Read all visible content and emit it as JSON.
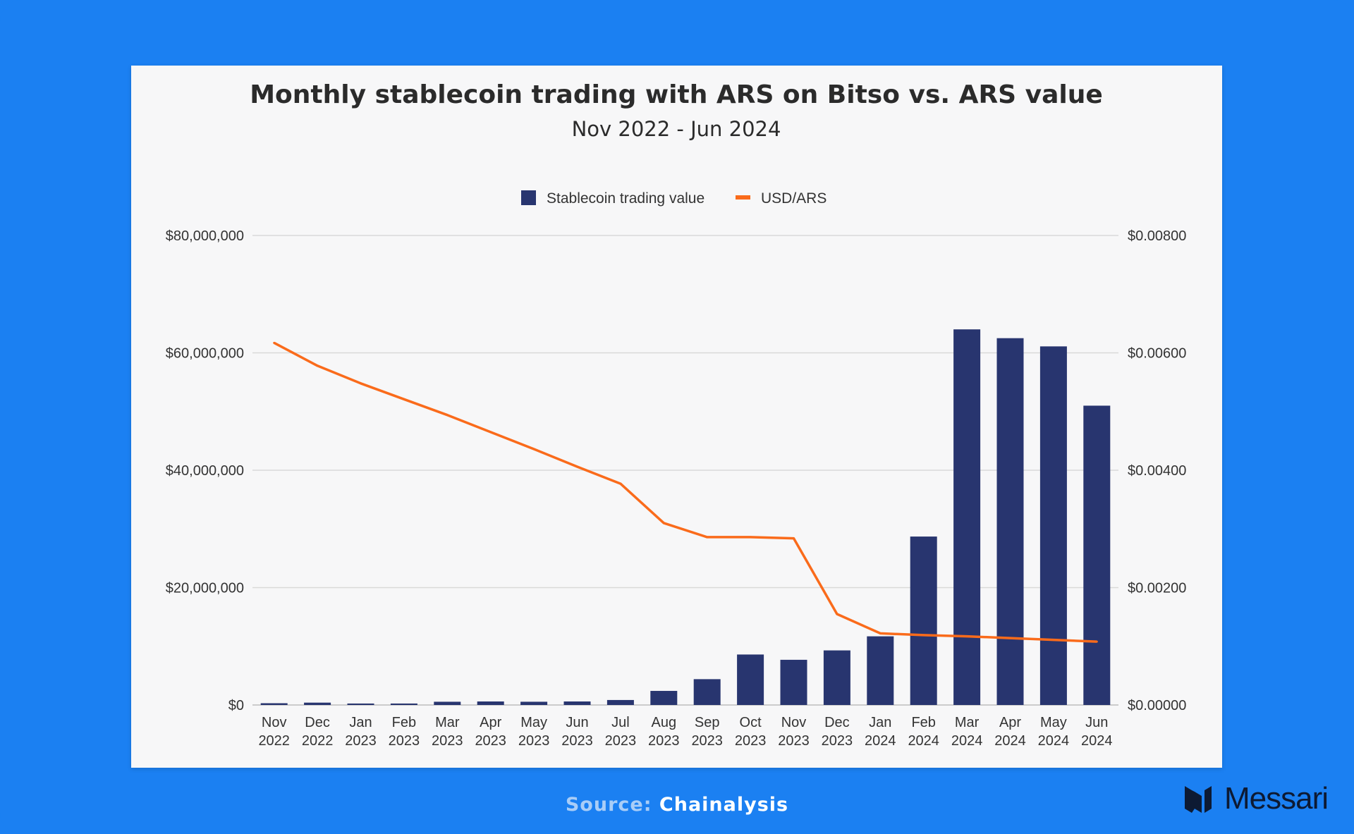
{
  "chart_data": {
    "type": "bar+line",
    "title": "Monthly stablecoin trading with ARS on Bitso vs. ARS value",
    "subtitle": "Nov 2022 - Jun 2024",
    "categories": [
      [
        "Nov",
        "2022"
      ],
      [
        "Dec",
        "2022"
      ],
      [
        "Jan",
        "2023"
      ],
      [
        "Feb",
        "2023"
      ],
      [
        "Mar",
        "2023"
      ],
      [
        "Apr",
        "2023"
      ],
      [
        "May",
        "2023"
      ],
      [
        "Jun",
        "2023"
      ],
      [
        "Jul",
        "2023"
      ],
      [
        "Aug",
        "2023"
      ],
      [
        "Sep",
        "2023"
      ],
      [
        "Oct",
        "2023"
      ],
      [
        "Nov",
        "2023"
      ],
      [
        "Dec",
        "2023"
      ],
      [
        "Jan",
        "2024"
      ],
      [
        "Feb",
        "2024"
      ],
      [
        "Mar",
        "2024"
      ],
      [
        "Apr",
        "2024"
      ],
      [
        "May",
        "2024"
      ],
      [
        "Jun",
        "2024"
      ]
    ],
    "series": [
      {
        "name": "Stablecoin trading value",
        "axis": "left",
        "kind": "bar",
        "color": "#28356f",
        "values": [
          300000,
          400000,
          250000,
          250000,
          550000,
          600000,
          550000,
          600000,
          850000,
          2400000,
          4400000,
          8600000,
          7700000,
          9300000,
          11700000,
          28700000,
          64000000,
          62500000,
          61100000,
          51000000
        ]
      },
      {
        "name": "USD/ARS",
        "axis": "right",
        "kind": "line",
        "color": "#fa6b1b",
        "values": [
          0.00617,
          0.00578,
          0.00548,
          0.00521,
          0.00494,
          0.00465,
          0.00436,
          0.00406,
          0.00377,
          0.0031,
          0.00286,
          0.00286,
          0.00284,
          0.00155,
          0.00122,
          0.00119,
          0.00117,
          0.00114,
          0.00111,
          0.00108
        ]
      }
    ],
    "y_left": {
      "min": 0,
      "max": 80000000,
      "ticks": [
        "$0",
        "$20,000,000",
        "$40,000,000",
        "$60,000,000",
        "$80,000,000"
      ]
    },
    "y_right": {
      "min": 0,
      "max": 0.008,
      "ticks": [
        "$0.00000",
        "$0.00200",
        "$0.00400",
        "$0.00600",
        "$0.00800"
      ]
    },
    "grid": true,
    "legend_position": "top-center"
  },
  "footer": {
    "source_label": "Source:",
    "source_name": "Chainalysis",
    "brand": "Messari"
  },
  "colors": {
    "background": "#1b80f2",
    "card": "#f7f7f8",
    "bar": "#28356f",
    "line": "#fa6b1b",
    "grid": "#d9d9d9"
  }
}
